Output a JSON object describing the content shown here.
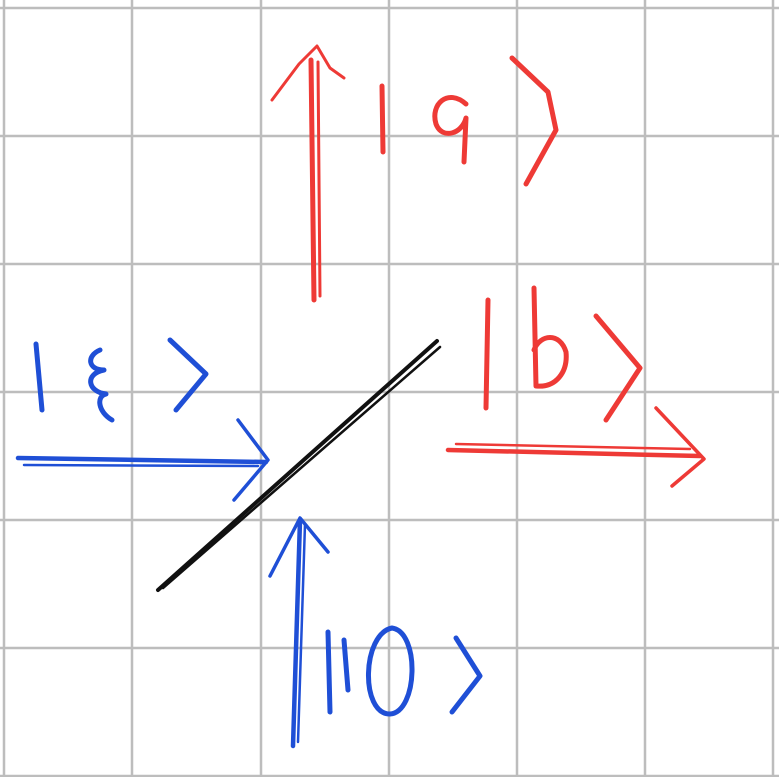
{
  "diagram": {
    "background": "#ffffff",
    "grid_color": "#bdbdbd",
    "labels": {
      "output_a": "|a⟩",
      "output_b": "|b⟩",
      "input_xi": "|ξ⟩",
      "input_zero": "|0⟩"
    },
    "colors": {
      "outputs": "#ee3a36",
      "inputs": "#1f4fd6",
      "beam_splitter": "#111111"
    }
  }
}
